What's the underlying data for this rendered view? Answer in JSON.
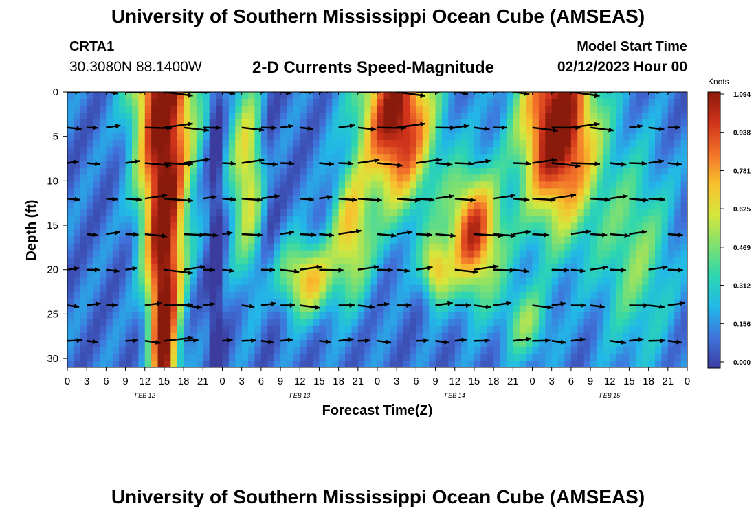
{
  "header": {
    "title": "University of Southern Mississippi Ocean Cube (AMSEAS)",
    "station_id": "CRTA1",
    "station_coords": "30.3080N  88.1400W",
    "chart_title": "2-D Currents Speed-Magnitude",
    "start_label": "Model Start Time",
    "start_value": "02/12/2023 Hour 00"
  },
  "footer": {
    "title": "University of Southern Mississippi Ocean Cube (AMSEAS)"
  },
  "colorbar": {
    "units": "Knots",
    "ticks": [
      "1.094",
      "0.938",
      "0.781",
      "0.625",
      "0.469",
      "0.312",
      "0.156",
      "0.000"
    ]
  },
  "colors": {
    "scale": [
      "#3b3c9e",
      "#3f74dc",
      "#22b8e8",
      "#2dd6b0",
      "#7fe070",
      "#d6e73c",
      "#f8c02d",
      "#f2712a",
      "#d0331b",
      "#8a1a0c"
    ]
  },
  "chart_data": {
    "type": "heatmap",
    "title": "2-D Currents Speed-Magnitude",
    "xlabel": "Forecast Time(Z)",
    "ylabel": "Depth (ft)",
    "x_tick_labels": [
      "0",
      "3",
      "6",
      "9",
      "12",
      "15",
      "18",
      "21",
      "0",
      "3",
      "6",
      "9",
      "12",
      "15",
      "18",
      "21",
      "0",
      "3",
      "6",
      "9",
      "12",
      "15",
      "18",
      "21",
      "0",
      "3",
      "6",
      "9",
      "12",
      "15",
      "18",
      "21",
      "0"
    ],
    "x_range_hours": [
      0,
      96
    ],
    "date_labels": [
      {
        "label": "FEB 12",
        "hour": 12
      },
      {
        "label": "FEB 13",
        "hour": 36
      },
      {
        "label": "FEB 14",
        "hour": 60
      },
      {
        "label": "FEB 15",
        "hour": 84
      }
    ],
    "ylim": [
      31,
      0
    ],
    "y_ticks": [
      0,
      5,
      10,
      15,
      20,
      25,
      30
    ],
    "value_range": [
      0.0,
      1.094
    ],
    "speed_field_units": "Knots",
    "vector_depths_ft": [
      0,
      4,
      8,
      12,
      16,
      20,
      24,
      28
    ],
    "vector_hours": [
      0,
      3,
      6,
      9,
      12,
      15,
      18,
      21,
      24,
      27,
      30,
      33,
      36,
      39,
      42,
      45,
      48,
      51,
      54,
      57,
      60,
      63,
      66,
      69,
      72,
      75,
      78,
      81,
      84,
      87,
      90,
      93,
      96
    ],
    "speed_max_hours": [
      15,
      51,
      63,
      76
    ],
    "speed_max_values": [
      1.05,
      1.0,
      0.85,
      1.09
    ]
  }
}
